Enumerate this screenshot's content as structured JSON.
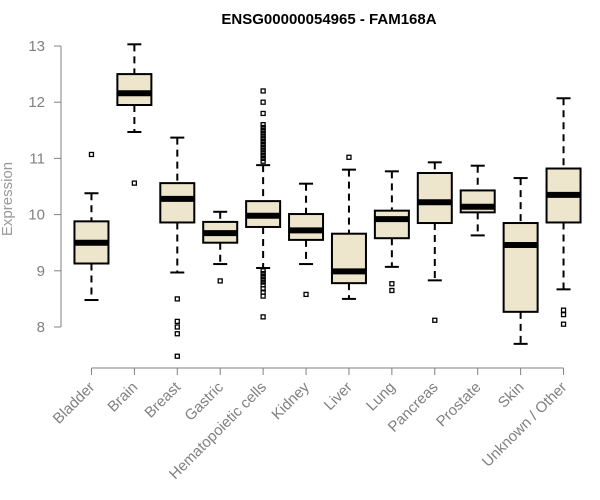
{
  "chart_data": {
    "type": "boxplot",
    "title": "ENSG00000054965 - FAM168A",
    "xlabel": "",
    "ylabel": "Expression",
    "ylim": [
      7.3,
      13.2
    ],
    "yticks": [
      8,
      9,
      10,
      11,
      12,
      13
    ],
    "box_fill": "#ede6cc",
    "categories": [
      "Bladder",
      "Brain",
      "Breast",
      "Gastric",
      "Hematopoietic cells",
      "Kidney",
      "Liver",
      "Lung",
      "Pancreas",
      "Prostate",
      "Skin",
      "Unknown / Other"
    ],
    "series": [
      {
        "name": "Bladder",
        "whisker_low": 8.48,
        "q1": 9.13,
        "median": 9.5,
        "q3": 9.88,
        "whisker_high": 10.38,
        "outliers": [
          11.07
        ]
      },
      {
        "name": "Brain",
        "whisker_low": 11.47,
        "q1": 11.95,
        "median": 12.16,
        "q3": 12.5,
        "whisker_high": 13.03,
        "outliers": [
          10.56
        ]
      },
      {
        "name": "Breast",
        "whisker_low": 8.97,
        "q1": 9.86,
        "median": 10.28,
        "q3": 10.56,
        "whisker_high": 11.37,
        "outliers": [
          8.5,
          8.1,
          8.0,
          7.88,
          7.48
        ]
      },
      {
        "name": "Gastric",
        "whisker_low": 9.12,
        "q1": 9.5,
        "median": 9.67,
        "q3": 9.87,
        "whisker_high": 10.05,
        "outliers": [
          8.82
        ]
      },
      {
        "name": "Hematopoietic cells",
        "whisker_low": 9.05,
        "q1": 9.78,
        "median": 9.98,
        "q3": 10.24,
        "whisker_high": 10.88,
        "outliers": [
          12.2,
          12.0,
          11.8,
          11.6,
          11.55,
          11.5,
          11.45,
          11.4,
          11.35,
          11.3,
          11.25,
          11.2,
          11.15,
          11.1,
          11.05,
          11.0,
          10.95,
          9.0,
          8.95,
          8.9,
          8.85,
          8.8,
          8.75,
          8.68,
          8.62,
          8.55,
          8.18
        ]
      },
      {
        "name": "Kidney",
        "whisker_low": 9.12,
        "q1": 9.55,
        "median": 9.72,
        "q3": 10.01,
        "whisker_high": 10.55,
        "outliers": [
          8.58
        ]
      },
      {
        "name": "Liver",
        "whisker_low": 8.5,
        "q1": 8.78,
        "median": 8.99,
        "q3": 9.66,
        "whisker_high": 10.8,
        "outliers": [
          11.02
        ]
      },
      {
        "name": "Lung",
        "whisker_low": 9.07,
        "q1": 9.58,
        "median": 9.92,
        "q3": 10.07,
        "whisker_high": 10.77,
        "outliers": [
          8.77,
          8.65
        ]
      },
      {
        "name": "Pancreas",
        "whisker_low": 8.83,
        "q1": 9.85,
        "median": 10.22,
        "q3": 10.74,
        "whisker_high": 10.93,
        "outliers": [
          8.12
        ]
      },
      {
        "name": "Prostate",
        "whisker_low": 9.63,
        "q1": 10.04,
        "median": 10.14,
        "q3": 10.43,
        "whisker_high": 10.87,
        "outliers": []
      },
      {
        "name": "Skin",
        "whisker_low": 7.7,
        "q1": 8.27,
        "median": 9.46,
        "q3": 9.85,
        "whisker_high": 10.65,
        "outliers": []
      },
      {
        "name": "Unknown / Other",
        "whisker_low": 8.67,
        "q1": 9.86,
        "median": 10.35,
        "q3": 10.82,
        "whisker_high": 12.07,
        "outliers": [
          8.3,
          8.22,
          8.05
        ]
      }
    ]
  }
}
